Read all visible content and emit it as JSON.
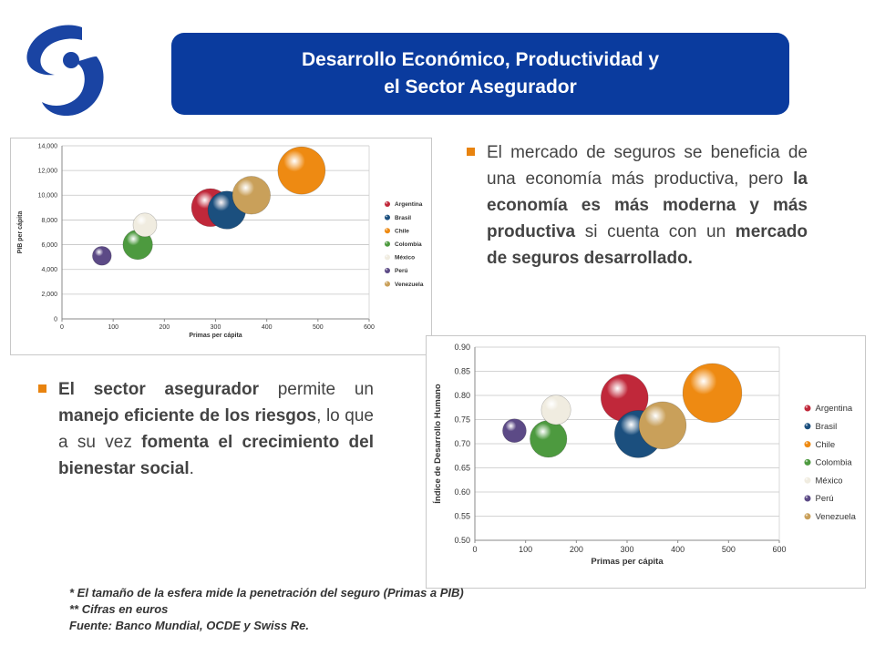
{
  "header": {
    "title_line1": "Desarrollo Económico, Productividad y",
    "title_line2": "el Sector Asegurador"
  },
  "logo": {
    "icon": "insurer-s-logo",
    "color": "#1a44a3"
  },
  "colors": {
    "title_bg": "#0a3b9e",
    "bullet": "#e8830f"
  },
  "bullets": [
    {
      "segments": [
        {
          "text": "El mercado de seguros se beneficia de una economía más productiva, pero ",
          "bold": false
        },
        {
          "text": "la economía es más moderna y más productiva",
          "bold": true
        },
        {
          "text": " si cuenta con un ",
          "bold": false
        },
        {
          "text": "mercado de seguros desarrollado.",
          "bold": true
        }
      ]
    },
    {
      "segments": [
        {
          "text": "El sector asegurador",
          "bold": true
        },
        {
          "text": " permite un ",
          "bold": false
        },
        {
          "text": "manejo eficiente de los riesgos",
          "bold": true
        },
        {
          "text": ", lo que a su vez ",
          "bold": false
        },
        {
          "text": "fomenta el crecimiento del bienestar social",
          "bold": true
        },
        {
          "text": ".",
          "bold": false
        }
      ]
    }
  ],
  "footnotes": {
    "line1": "*  El tamaño de la esfera mide la penetración del seguro (Primas a PIB)",
    "line2": "** Cifras en euros",
    "line3": "Fuente: Banco Mundial, OCDE y Swiss Re."
  },
  "chart_data": [
    {
      "type": "scatter",
      "bubble": true,
      "xlabel": "Primas per cápita",
      "ylabel": "PIB per cápita",
      "xlim": [
        0,
        600
      ],
      "ylim": [
        0,
        14000
      ],
      "x_ticks": [
        0,
        100,
        200,
        300,
        400,
        500,
        600
      ],
      "x_tick_labels": [
        "0",
        "100",
        "200",
        "300",
        "400",
        "500",
        "600"
      ],
      "y_ticks": [
        0,
        2000,
        4000,
        6000,
        8000,
        10000,
        12000,
        14000
      ],
      "y_tick_labels": [
        "0",
        "2,000",
        "4,000",
        "6,000",
        "8,000",
        "10,000",
        "12,000",
        "14,000"
      ],
      "grid": true,
      "legend_position": "right",
      "series": [
        {
          "name": "Argentina",
          "color": "#c0283a",
          "x": 290,
          "y": 9000,
          "size": 3.2
        },
        {
          "name": "Brasil",
          "color": "#1b4f7e",
          "x": 322,
          "y": 8800,
          "size": 3.2
        },
        {
          "name": "Chile",
          "color": "#ee8a12",
          "x": 468,
          "y": 12000,
          "size": 4.0
        },
        {
          "name": "Colombia",
          "color": "#4d9a3f",
          "x": 148,
          "y": 6000,
          "size": 2.5
        },
        {
          "name": "México",
          "color": "#f0ece0",
          "x": 162,
          "y": 7600,
          "size": 2.0
        },
        {
          "name": "Perú",
          "color": "#5c4a86",
          "x": 78,
          "y": 5100,
          "size": 1.6
        },
        {
          "name": "Venezuela",
          "color": "#c9a05a",
          "x": 370,
          "y": 10000,
          "size": 3.2
        }
      ]
    },
    {
      "type": "scatter",
      "bubble": true,
      "xlabel": "Primas per cápita",
      "ylabel": "Índice de Desarrollo Humano",
      "xlim": [
        0,
        600
      ],
      "ylim": [
        0.5,
        0.9
      ],
      "x_ticks": [
        0,
        100,
        200,
        300,
        400,
        500,
        600
      ],
      "x_tick_labels": [
        "0",
        "100",
        "200",
        "300",
        "400",
        "500",
        "600"
      ],
      "y_ticks": [
        0.5,
        0.55,
        0.6,
        0.65,
        0.7,
        0.75,
        0.8,
        0.85,
        0.9
      ],
      "y_tick_labels": [
        "0.50",
        "0.55",
        "0.60",
        "0.65",
        "0.70",
        "0.75",
        "0.80",
        "0.85",
        "0.90"
      ],
      "grid": true,
      "legend_position": "right",
      "series": [
        {
          "name": "Argentina",
          "color": "#c0283a",
          "x": 295,
          "y": 0.795,
          "size": 3.2
        },
        {
          "name": "Brasil",
          "color": "#1b4f7e",
          "x": 322,
          "y": 0.72,
          "size": 3.2
        },
        {
          "name": "Chile",
          "color": "#ee8a12",
          "x": 468,
          "y": 0.805,
          "size": 4.0
        },
        {
          "name": "Colombia",
          "color": "#4d9a3f",
          "x": 145,
          "y": 0.71,
          "size": 2.5
        },
        {
          "name": "México",
          "color": "#f0ece0",
          "x": 160,
          "y": 0.77,
          "size": 2.0
        },
        {
          "name": "Perú",
          "color": "#5c4a86",
          "x": 78,
          "y": 0.727,
          "size": 1.6
        },
        {
          "name": "Venezuela",
          "color": "#c9a05a",
          "x": 370,
          "y": 0.738,
          "size": 3.2
        }
      ]
    }
  ]
}
